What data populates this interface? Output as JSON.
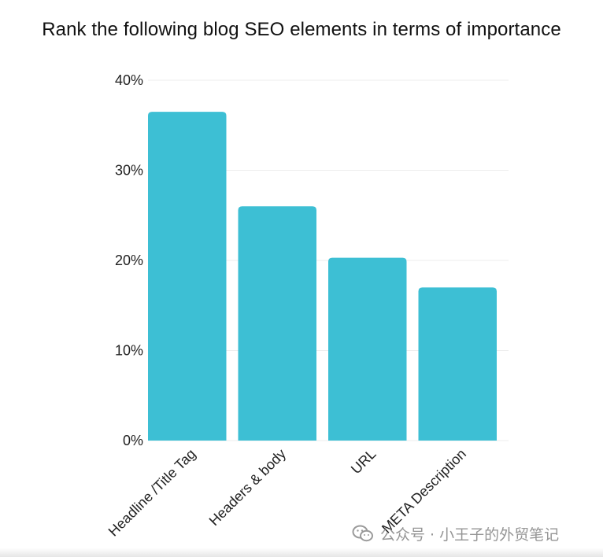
{
  "chart_data": {
    "type": "bar",
    "title": "Rank the following blog SEO elements in terms of importance",
    "categories": [
      "Headline /Title Tag",
      "Headers & body",
      "URL",
      "META Description"
    ],
    "values": [
      36.5,
      26.0,
      20.3,
      17.0
    ],
    "ylim": [
      0,
      40
    ],
    "yticks": [
      0,
      10,
      20,
      30,
      40
    ],
    "ytick_labels": [
      "0%",
      "10%",
      "20%",
      "30%",
      "40%"
    ],
    "xlabel": "",
    "ylabel": "",
    "grid": true,
    "legend": "none",
    "bar_color": "#3dbfd4",
    "grid_color": "#eeeeee"
  },
  "watermark": {
    "text": "公众号 · 小王子的外贸笔记",
    "icon": "wechat-icon"
  }
}
